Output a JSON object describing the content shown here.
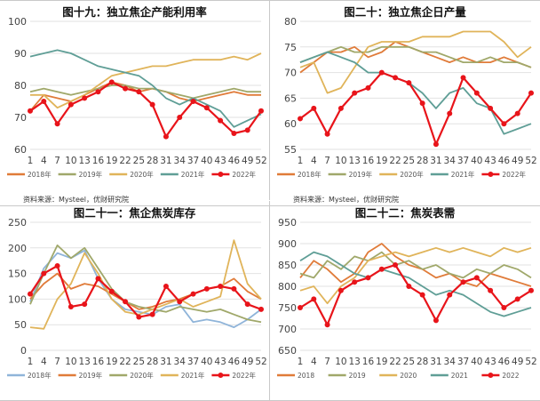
{
  "source_text": "资料来源：Mysteel，优财研究院",
  "chart_data": [
    {
      "type": "line",
      "title": "图十九：独立焦企产能利用率",
      "ylim": [
        60,
        100
      ],
      "yticks": [
        "60",
        "70",
        "80",
        "90",
        "100"
      ],
      "ytick_values": [
        60,
        70,
        80,
        90,
        100
      ],
      "x": [
        1,
        4,
        7,
        10,
        13,
        16,
        19,
        22,
        25,
        28,
        31,
        34,
        37,
        40,
        43,
        46,
        49,
        52
      ],
      "xtick_labels": [
        "1",
        "4",
        "7",
        "10",
        "13",
        "16",
        "19",
        "22",
        "25",
        "28",
        "31",
        "34",
        "37",
        "40",
        "43",
        "46",
        "49",
        "52"
      ],
      "legend_position": "bottom",
      "series": [
        {
          "name": "2018年",
          "color": "#e07b39",
          "marker": false,
          "values": [
            72,
            77,
            76,
            75,
            77,
            79,
            81,
            80,
            78,
            79,
            78,
            76,
            75,
            76,
            77,
            78,
            77,
            77
          ]
        },
        {
          "name": "2019年",
          "color": "#a0a86a",
          "marker": false,
          "values": [
            78,
            79,
            78,
            77,
            78,
            79,
            80,
            80,
            79,
            79,
            78,
            77,
            76,
            77,
            78,
            79,
            78,
            78
          ]
        },
        {
          "name": "2020年",
          "color": "#e0b45a",
          "marker": false,
          "values": [
            77,
            77,
            73,
            75,
            77,
            80,
            83,
            84,
            85,
            86,
            86,
            87,
            88,
            88,
            88,
            89,
            88,
            90
          ]
        },
        {
          "name": "2021年",
          "color": "#5f9e96",
          "marker": false,
          "values": [
            89,
            90,
            91,
            90,
            88,
            86,
            85,
            84,
            83,
            80,
            76,
            74,
            76,
            74,
            72,
            67,
            69,
            71
          ]
        },
        {
          "name": "2022年",
          "color": "#e8141a",
          "marker": true,
          "values": [
            72,
            75,
            68,
            74,
            76,
            78,
            81,
            79,
            78,
            74,
            64,
            70,
            75,
            73,
            69,
            65,
            66,
            72
          ]
        }
      ]
    },
    {
      "type": "line",
      "title": "图二十：独立焦企日产量",
      "ylim": [
        55,
        80
      ],
      "yticks": [
        "55",
        "60",
        "65",
        "70",
        "75",
        "80"
      ],
      "ytick_values": [
        55,
        60,
        65,
        70,
        75,
        80
      ],
      "x": [
        1,
        4,
        7,
        10,
        13,
        16,
        19,
        22,
        25,
        28,
        31,
        34,
        37,
        40,
        43,
        46,
        49,
        52
      ],
      "xtick_labels": [
        "1",
        "4",
        "7",
        "10",
        "13",
        "16",
        "19",
        "22",
        "25",
        "28",
        "31",
        "34",
        "37",
        "40",
        "43",
        "46",
        "49",
        "52"
      ],
      "legend_position": "bottom",
      "series": [
        {
          "name": "2018年",
          "color": "#e07b39",
          "marker": false,
          "values": [
            70,
            72,
            74,
            74,
            75,
            73,
            74,
            76,
            75,
            74,
            73,
            72,
            73,
            72,
            72,
            73,
            72,
            71
          ]
        },
        {
          "name": "2019年",
          "color": "#a0a86a",
          "marker": false,
          "values": [
            72,
            73,
            74,
            75,
            74,
            74,
            75,
            75,
            75,
            74,
            74,
            73,
            72,
            72,
            73,
            72,
            72,
            71
          ]
        },
        {
          "name": "2020年",
          "color": "#e0b45a",
          "marker": false,
          "values": [
            71,
            72,
            66,
            67,
            71,
            75,
            76,
            76,
            76,
            77,
            77,
            77,
            78,
            78,
            78,
            76,
            73,
            75
          ]
        },
        {
          "name": "2021年",
          "color": "#5f9e96",
          "marker": false,
          "values": [
            72,
            73,
            74,
            73,
            72,
            70,
            70,
            69,
            68,
            66,
            63,
            66,
            67,
            64,
            63,
            58,
            59,
            60
          ]
        },
        {
          "name": "2022年",
          "color": "#e8141a",
          "marker": true,
          "values": [
            61,
            63,
            58,
            63,
            66,
            67,
            70,
            69,
            68,
            64,
            56,
            62,
            69,
            66,
            63,
            60,
            62,
            66
          ]
        }
      ]
    },
    {
      "type": "line",
      "title": "图二十一：焦企焦炭库存",
      "ylim": [
        0,
        250
      ],
      "yticks": [
        "0",
        "50",
        "100",
        "150",
        "200",
        "250"
      ],
      "ytick_values": [
        0,
        50,
        100,
        150,
        200,
        250
      ],
      "x": [
        1,
        4,
        7,
        10,
        13,
        16,
        19,
        22,
        25,
        28,
        31,
        34,
        37,
        40,
        43,
        46,
        49,
        52
      ],
      "xtick_labels": [
        "1",
        "4",
        "7",
        "10",
        "13",
        "16",
        "19",
        "22",
        "25",
        "28",
        "31",
        "34",
        "37",
        "40",
        "43",
        "46",
        "49",
        "52"
      ],
      "legend_position": "bottom",
      "series": [
        {
          "name": "2018年",
          "color": "#8fb4d9",
          "marker": false,
          "values": [
            95,
            160,
            190,
            180,
            195,
            140,
            100,
            80,
            75,
            70,
            85,
            90,
            55,
            60,
            55,
            45,
            60,
            80
          ]
        },
        {
          "name": "2019年",
          "color": "#e07b39",
          "marker": false,
          "values": [
            100,
            130,
            150,
            120,
            130,
            125,
            110,
            95,
            80,
            85,
            95,
            100,
            110,
            120,
            125,
            140,
            115,
            100
          ]
        },
        {
          "name": "2020年",
          "color": "#a0a86a",
          "marker": false,
          "values": [
            90,
            150,
            205,
            180,
            200,
            160,
            120,
            95,
            85,
            80,
            75,
            85,
            80,
            75,
            80,
            70,
            60,
            55
          ]
        },
        {
          "name": "2021年",
          "color": "#e0b45a",
          "marker": false,
          "values": [
            45,
            42,
            100,
            130,
            190,
            150,
            100,
            75,
            70,
            80,
            90,
            100,
            85,
            95,
            105,
            215,
            130,
            100
          ]
        },
        {
          "name": "2022年",
          "color": "#e8141a",
          "marker": true,
          "values": [
            110,
            150,
            165,
            85,
            90,
            140,
            115,
            95,
            65,
            70,
            125,
            95,
            110,
            120,
            125,
            120,
            90,
            80
          ]
        }
      ]
    },
    {
      "type": "line",
      "title": "图二十二：焦炭表需",
      "ylim": [
        650,
        950
      ],
      "yticks": [
        "650",
        "700",
        "750",
        "800",
        "850",
        "900",
        "950"
      ],
      "ytick_values": [
        650,
        700,
        750,
        800,
        850,
        900,
        950
      ],
      "x": [
        1,
        4,
        7,
        10,
        13,
        16,
        19,
        22,
        25,
        28,
        31,
        34,
        37,
        40,
        43,
        46,
        49,
        52
      ],
      "xtick_labels": [
        "1",
        "4",
        "7",
        "10",
        "13",
        "16",
        "19",
        "22",
        "25",
        "28",
        "31",
        "34",
        "37",
        "40",
        "43",
        "46",
        "49",
        "52"
      ],
      "legend_position": "bottom",
      "series": [
        {
          "name": "2018",
          "color": "#e07b39",
          "marker": false,
          "values": [
            820,
            860,
            840,
            810,
            830,
            880,
            900,
            870,
            850,
            840,
            820,
            830,
            810,
            800,
            830,
            820,
            810,
            800
          ]
        },
        {
          "name": "2019",
          "color": "#a0a86a",
          "marker": false,
          "values": [
            830,
            820,
            860,
            840,
            870,
            860,
            880,
            850,
            860,
            840,
            850,
            830,
            820,
            840,
            830,
            850,
            840,
            820
          ]
        },
        {
          "name": "2020",
          "color": "#e0b45a",
          "marker": false,
          "values": [
            790,
            800,
            760,
            800,
            820,
            860,
            870,
            880,
            870,
            880,
            890,
            880,
            890,
            880,
            870,
            890,
            880,
            890
          ]
        },
        {
          "name": "2021",
          "color": "#5f9e96",
          "marker": false,
          "values": [
            860,
            880,
            870,
            850,
            830,
            820,
            840,
            830,
            820,
            800,
            780,
            790,
            780,
            760,
            740,
            730,
            740,
            750
          ]
        },
        {
          "name": "2022",
          "color": "#e8141a",
          "marker": true,
          "values": [
            750,
            770,
            710,
            790,
            810,
            820,
            840,
            850,
            800,
            780,
            720,
            780,
            810,
            820,
            790,
            750,
            770,
            790
          ]
        }
      ]
    }
  ]
}
